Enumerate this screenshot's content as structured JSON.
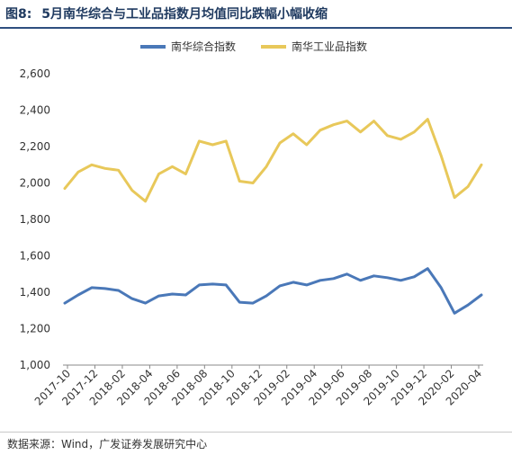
{
  "header": {
    "figure_label": "图8:",
    "title": "5月南华综合与工业品指数月均值同比跌幅小幅收缩"
  },
  "footer": {
    "source": "数据来源：Wind，广发证券发展研究中心"
  },
  "colors": {
    "series1": "#4a78b8",
    "series2": "#e8c85a",
    "title": "#1f3a60"
  },
  "chart_data": {
    "type": "line",
    "title": "5月南华综合与工业品指数月均值同比跌幅小幅收缩",
    "xlabel": "",
    "ylabel": "",
    "ylim": [
      1000,
      2600
    ],
    "yticks": [
      "1,000",
      "1,200",
      "1,400",
      "1,600",
      "1,800",
      "2,000",
      "2,200",
      "2,400",
      "2,600"
    ],
    "xticks": [
      "2017-10",
      "2017-12",
      "2018-02",
      "2018-04",
      "2018-06",
      "2018-08",
      "2018-10",
      "2018-12",
      "2019-02",
      "2019-04",
      "2019-06",
      "2019-08",
      "2019-10",
      "2019-12",
      "2020-02",
      "2020-04"
    ],
    "grid": false,
    "legend_position": "top-center",
    "x": [
      "2017-10",
      "2017-11",
      "2017-12",
      "2018-01",
      "2018-02",
      "2018-03",
      "2018-04",
      "2018-05",
      "2018-06",
      "2018-07",
      "2018-08",
      "2018-09",
      "2018-10",
      "2018-11",
      "2018-12",
      "2019-01",
      "2019-02",
      "2019-03",
      "2019-04",
      "2019-05",
      "2019-06",
      "2019-07",
      "2019-08",
      "2019-09",
      "2019-10",
      "2019-11",
      "2019-12",
      "2020-01",
      "2020-02",
      "2020-03",
      "2020-04",
      "2020-05"
    ],
    "series": [
      {
        "name": "南华综合指数",
        "values": [
          1340,
          1385,
          1425,
          1420,
          1410,
          1365,
          1340,
          1380,
          1390,
          1385,
          1440,
          1445,
          1440,
          1345,
          1340,
          1380,
          1435,
          1455,
          1440,
          1465,
          1475,
          1500,
          1465,
          1490,
          1480,
          1465,
          1485,
          1530,
          1425,
          1285,
          1330,
          1385
        ]
      },
      {
        "name": "南华工业品指数",
        "values": [
          1970,
          2060,
          2100,
          2080,
          2070,
          1960,
          1900,
          2050,
          2090,
          2050,
          2230,
          2210,
          2230,
          2010,
          2000,
          2090,
          2220,
          2270,
          2210,
          2290,
          2320,
          2340,
          2280,
          2340,
          2260,
          2240,
          2280,
          2350,
          2150,
          1920,
          1980,
          2100
        ]
      }
    ]
  }
}
